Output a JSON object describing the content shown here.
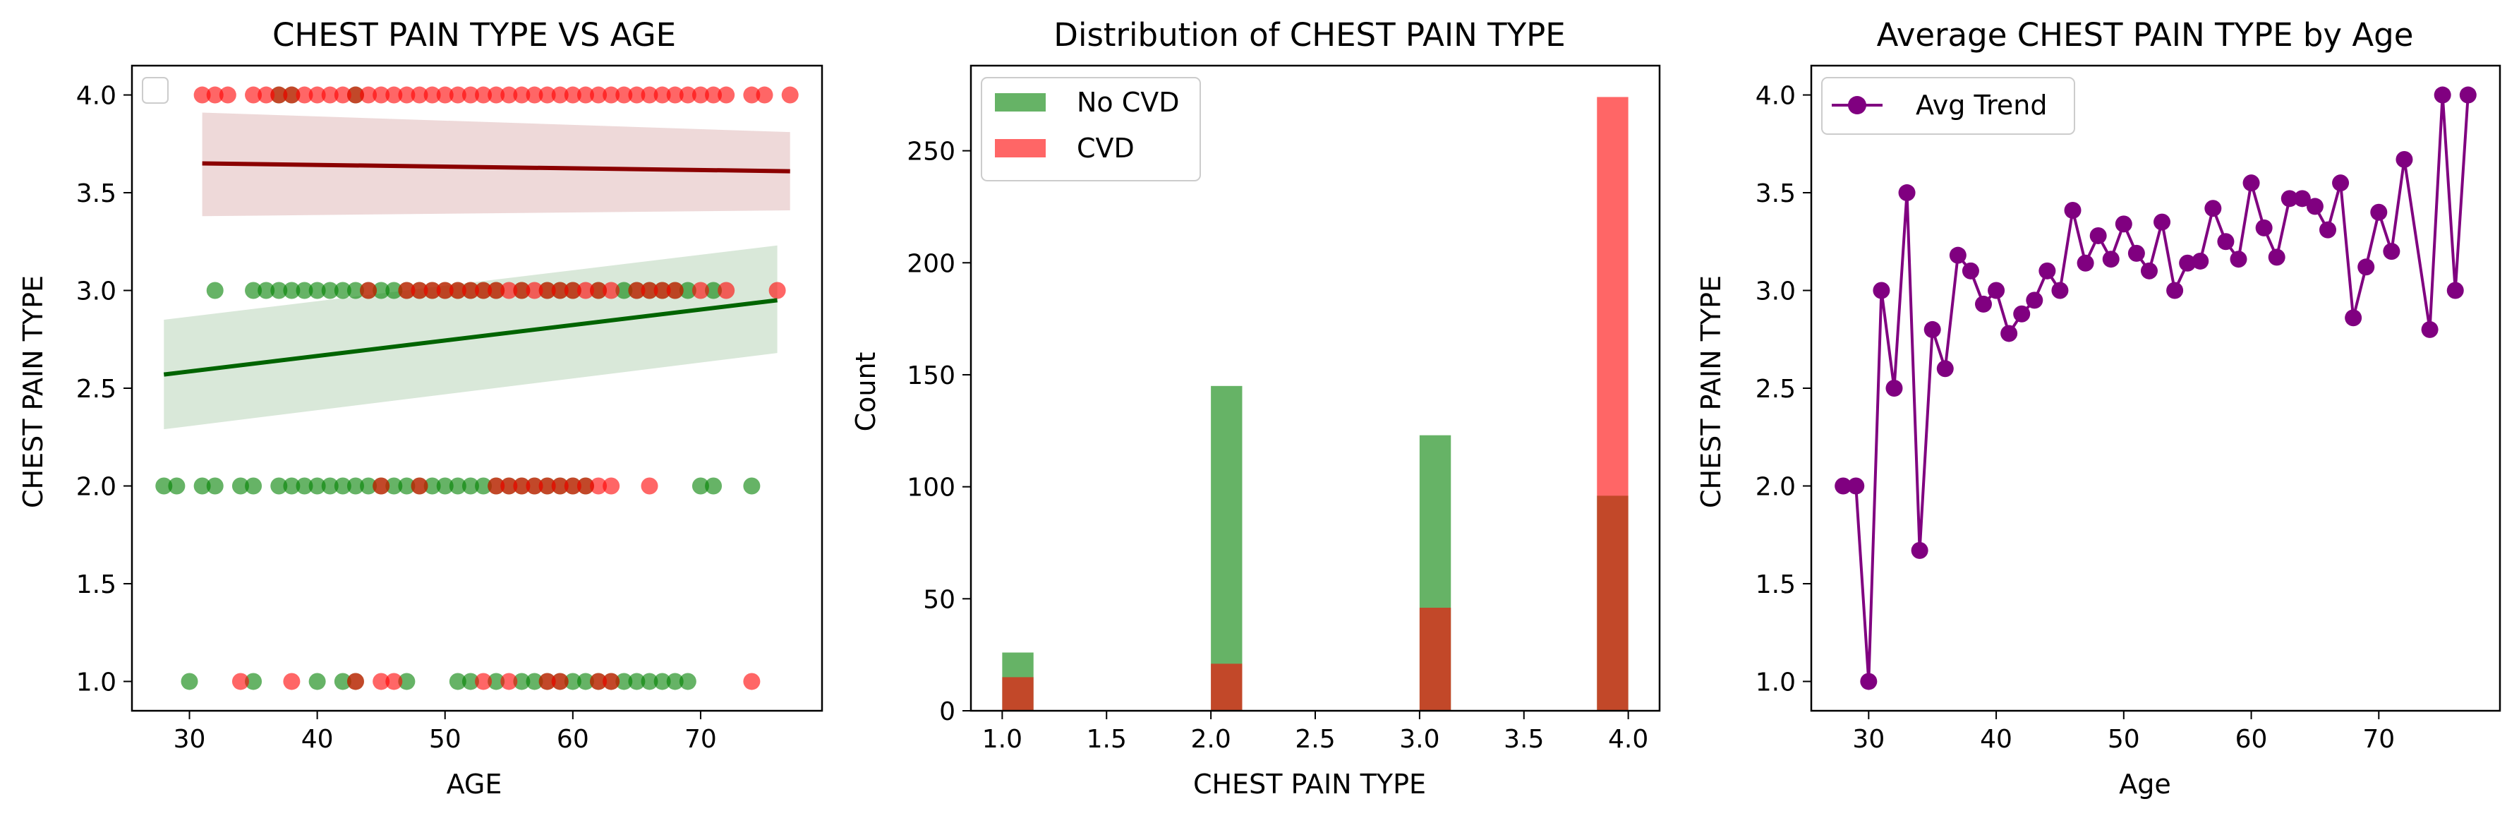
{
  "chart_data": [
    {
      "type": "scatter",
      "title": "CHEST PAIN TYPE VS AGE",
      "xlabel": "AGE",
      "ylabel": "CHEST PAIN TYPE",
      "xlim": [
        25.5,
        79.5
      ],
      "ylim": [
        0.85,
        4.15
      ],
      "xticks": [
        30,
        40,
        50,
        60,
        70
      ],
      "yticks": [
        1.0,
        1.5,
        2.0,
        2.5,
        3.0,
        3.5,
        4.0
      ],
      "legend_position": "top-left",
      "colors": {
        "no_cvd": "#008000",
        "cvd": "#ff0000",
        "no_cvd_fit": "#006400",
        "cvd_fit": "#8b0000"
      },
      "series": [
        {
          "group": "no_cvd",
          "points": [
            [
              28,
              2
            ],
            [
              29,
              2
            ],
            [
              31,
              2
            ],
            [
              32,
              2
            ],
            [
              34,
              2
            ],
            [
              35,
              2
            ],
            [
              37,
              2
            ],
            [
              38,
              2
            ],
            [
              39,
              2
            ],
            [
              40,
              2
            ],
            [
              41,
              2
            ],
            [
              42,
              2
            ],
            [
              43,
              2
            ],
            [
              44,
              2
            ],
            [
              45,
              2
            ],
            [
              46,
              2
            ],
            [
              47,
              2
            ],
            [
              48,
              2
            ],
            [
              49,
              2
            ],
            [
              50,
              2
            ],
            [
              51,
              2
            ],
            [
              52,
              2
            ],
            [
              53,
              2
            ],
            [
              54,
              2
            ],
            [
              55,
              2
            ],
            [
              56,
              2
            ],
            [
              57,
              2
            ],
            [
              58,
              2
            ],
            [
              59,
              2
            ],
            [
              60,
              2
            ],
            [
              61,
              2
            ],
            [
              70,
              2
            ],
            [
              71,
              2
            ],
            [
              74,
              2
            ],
            [
              32,
              3
            ],
            [
              35,
              3
            ],
            [
              36,
              3
            ],
            [
              37,
              3
            ],
            [
              38,
              3
            ],
            [
              39,
              3
            ],
            [
              40,
              3
            ],
            [
              41,
              3
            ],
            [
              42,
              3
            ],
            [
              43,
              3
            ],
            [
              44,
              3
            ],
            [
              45,
              3
            ],
            [
              46,
              3
            ],
            [
              47,
              3
            ],
            [
              48,
              3
            ],
            [
              49,
              3
            ],
            [
              50,
              3
            ],
            [
              51,
              3
            ],
            [
              52,
              3
            ],
            [
              53,
              3
            ],
            [
              54,
              3
            ],
            [
              56,
              3
            ],
            [
              58,
              3
            ],
            [
              59,
              3
            ],
            [
              60,
              3
            ],
            [
              62,
              3
            ],
            [
              64,
              3
            ],
            [
              65,
              3
            ],
            [
              66,
              3
            ],
            [
              67,
              3
            ],
            [
              68,
              3
            ],
            [
              69,
              3
            ],
            [
              71,
              3
            ],
            [
              30,
              1
            ],
            [
              35,
              1
            ],
            [
              40,
              1
            ],
            [
              42,
              1
            ],
            [
              43,
              1
            ],
            [
              47,
              1
            ],
            [
              51,
              1
            ],
            [
              52,
              1
            ],
            [
              54,
              1
            ],
            [
              56,
              1
            ],
            [
              57,
              1
            ],
            [
              58,
              1
            ],
            [
              59,
              1
            ],
            [
              60,
              1
            ],
            [
              61,
              1
            ],
            [
              62,
              1
            ],
            [
              63,
              1
            ],
            [
              64,
              1
            ],
            [
              65,
              1
            ],
            [
              66,
              1
            ],
            [
              67,
              1
            ],
            [
              68,
              1
            ],
            [
              69,
              1
            ],
            [
              37,
              4
            ],
            [
              38,
              4
            ],
            [
              43,
              4
            ]
          ]
        },
        {
          "group": "cvd",
          "points": [
            [
              31,
              4
            ],
            [
              32,
              4
            ],
            [
              33,
              4
            ],
            [
              35,
              4
            ],
            [
              36,
              4
            ],
            [
              37,
              4
            ],
            [
              38,
              4
            ],
            [
              39,
              4
            ],
            [
              40,
              4
            ],
            [
              41,
              4
            ],
            [
              42,
              4
            ],
            [
              43,
              4
            ],
            [
              44,
              4
            ],
            [
              45,
              4
            ],
            [
              46,
              4
            ],
            [
              47,
              4
            ],
            [
              48,
              4
            ],
            [
              49,
              4
            ],
            [
              50,
              4
            ],
            [
              51,
              4
            ],
            [
              52,
              4
            ],
            [
              53,
              4
            ],
            [
              54,
              4
            ],
            [
              55,
              4
            ],
            [
              56,
              4
            ],
            [
              57,
              4
            ],
            [
              58,
              4
            ],
            [
              59,
              4
            ],
            [
              60,
              4
            ],
            [
              61,
              4
            ],
            [
              62,
              4
            ],
            [
              63,
              4
            ],
            [
              64,
              4
            ],
            [
              65,
              4
            ],
            [
              66,
              4
            ],
            [
              67,
              4
            ],
            [
              68,
              4
            ],
            [
              69,
              4
            ],
            [
              70,
              4
            ],
            [
              71,
              4
            ],
            [
              72,
              4
            ],
            [
              74,
              4
            ],
            [
              75,
              4
            ],
            [
              77,
              4
            ],
            [
              44,
              3
            ],
            [
              47,
              3
            ],
            [
              48,
              3
            ],
            [
              49,
              3
            ],
            [
              50,
              3
            ],
            [
              51,
              3
            ],
            [
              52,
              3
            ],
            [
              53,
              3
            ],
            [
              54,
              3
            ],
            [
              55,
              3
            ],
            [
              56,
              3
            ],
            [
              57,
              3
            ],
            [
              58,
              3
            ],
            [
              59,
              3
            ],
            [
              60,
              3
            ],
            [
              61,
              3
            ],
            [
              62,
              3
            ],
            [
              63,
              3
            ],
            [
              65,
              3
            ],
            [
              66,
              3
            ],
            [
              67,
              3
            ],
            [
              68,
              3
            ],
            [
              70,
              3
            ],
            [
              72,
              3
            ],
            [
              76,
              3
            ],
            [
              45,
              2
            ],
            [
              48,
              2
            ],
            [
              54,
              2
            ],
            [
              55,
              2
            ],
            [
              56,
              2
            ],
            [
              57,
              2
            ],
            [
              58,
              2
            ],
            [
              59,
              2
            ],
            [
              60,
              2
            ],
            [
              61,
              2
            ],
            [
              62,
              2
            ],
            [
              63,
              2
            ],
            [
              66,
              2
            ],
            [
              34,
              1
            ],
            [
              38,
              1
            ],
            [
              43,
              1
            ],
            [
              45,
              1
            ],
            [
              46,
              1
            ],
            [
              53,
              1
            ],
            [
              55,
              1
            ],
            [
              58,
              1
            ],
            [
              59,
              1
            ],
            [
              62,
              1
            ],
            [
              63,
              1
            ],
            [
              74,
              1
            ]
          ]
        }
      ],
      "regression": [
        {
          "group": "cvd",
          "x": [
            31,
            77
          ],
          "y": [
            3.65,
            3.61
          ],
          "ci_lower": [
            3.38,
            3.41
          ],
          "ci_upper": [
            3.91,
            3.81
          ]
        },
        {
          "group": "no_cvd",
          "x": [
            28,
            76
          ],
          "y": [
            2.57,
            2.95
          ],
          "ci_lower": [
            2.29,
            2.68
          ],
          "ci_upper": [
            2.85,
            3.23
          ]
        }
      ]
    },
    {
      "type": "bar",
      "title": "Distribution of CHEST PAIN TYPE",
      "xlabel": "CHEST PAIN TYPE",
      "ylabel": "Count",
      "xlim": [
        0.85,
        4.15
      ],
      "ylim": [
        0,
        288
      ],
      "xticks": [
        1.0,
        1.5,
        2.0,
        2.5,
        3.0,
        3.5,
        4.0
      ],
      "yticks": [
        0,
        50,
        100,
        150,
        200,
        250
      ],
      "legend_position": "top-left",
      "bin_edges": [
        1.0,
        1.15
      ],
      "series": [
        {
          "name": "No CVD",
          "color": "#008000",
          "x": [
            1.0,
            2.0,
            3.0,
            3.85
          ],
          "values": [
            26,
            145,
            123,
            96
          ]
        },
        {
          "name": "CVD",
          "color": "#ff0000",
          "x": [
            1.0,
            2.0,
            3.0,
            3.85
          ],
          "values": [
            15,
            21,
            46,
            274
          ]
        }
      ]
    },
    {
      "type": "line",
      "title": "Average CHEST PAIN TYPE by Age",
      "xlabel": "Age",
      "ylabel": "CHEST PAIN TYPE",
      "xlim": [
        25.5,
        79.5
      ],
      "ylim": [
        0.85,
        4.15
      ],
      "xticks": [
        30,
        40,
        50,
        60,
        70
      ],
      "yticks": [
        1.0,
        1.5,
        2.0,
        2.5,
        3.0,
        3.5,
        4.0
      ],
      "legend_position": "top-left",
      "series": [
        {
          "name": "Avg Trend",
          "color": "#800080",
          "x": [
            28,
            29,
            30,
            31,
            32,
            33,
            34,
            35,
            36,
            37,
            38,
            39,
            40,
            41,
            42,
            43,
            44,
            45,
            46,
            47,
            48,
            49,
            50,
            51,
            52,
            53,
            54,
            55,
            56,
            57,
            58,
            59,
            60,
            61,
            62,
            63,
            64,
            65,
            66,
            67,
            68,
            69,
            70,
            71,
            72,
            74,
            75,
            76,
            77
          ],
          "values": [
            2.0,
            2.0,
            1.0,
            3.0,
            2.5,
            3.5,
            1.67,
            2.8,
            2.6,
            3.18,
            3.1,
            2.93,
            3.0,
            2.78,
            2.88,
            2.95,
            3.1,
            3.0,
            3.41,
            3.14,
            3.28,
            3.16,
            3.34,
            3.19,
            3.1,
            3.35,
            3.0,
            3.14,
            3.15,
            3.42,
            3.25,
            3.16,
            3.55,
            3.32,
            3.17,
            3.47,
            3.47,
            3.43,
            3.31,
            3.55,
            2.86,
            3.12,
            3.4,
            3.2,
            3.67,
            2.8,
            4.0,
            3.0,
            4.0
          ]
        }
      ]
    }
  ]
}
